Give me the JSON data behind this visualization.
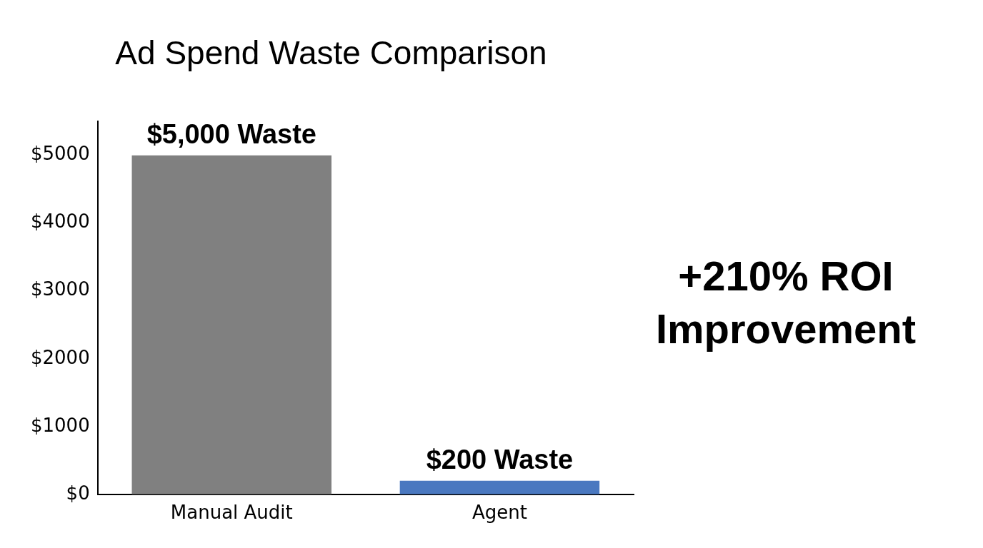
{
  "chart_data": {
    "type": "bar",
    "title": "Ad Spend Waste Comparison",
    "categories": [
      "Manual Audit",
      "Agent"
    ],
    "values": [
      5000,
      200
    ],
    "colors": [
      "#808080",
      "#4a78c0"
    ],
    "value_labels": [
      "$5,000 Waste",
      "$200 Waste"
    ],
    "ylim": [
      0,
      5500
    ],
    "yticks": [
      {
        "value": 0,
        "label": "$0"
      },
      {
        "value": 1000,
        "label": "$1000"
      },
      {
        "value": 2000,
        "label": "$2000"
      },
      {
        "value": 3000,
        "label": "$3000"
      },
      {
        "value": 4000,
        "label": "$4000"
      },
      {
        "value": 5000,
        "label": "$5000"
      }
    ],
    "grid": false,
    "legend": false,
    "annotations": [
      "+210% ROI Improvement"
    ]
  }
}
